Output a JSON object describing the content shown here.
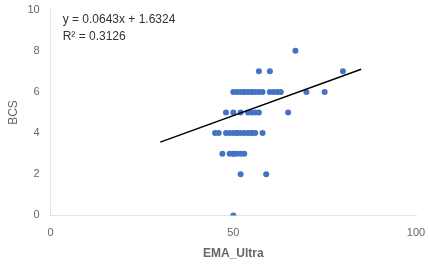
{
  "chart_data": {
    "type": "scatter",
    "x_label": "EMA_Ultra",
    "y_label": "BCS",
    "series": [
      {
        "type": "scatter",
        "color": "#4472C4",
        "x": [
          45,
          46,
          47,
          48,
          48,
          49,
          49,
          50,
          50,
          50,
          50,
          50,
          50,
          51,
          51,
          51,
          51,
          52,
          52,
          52,
          52,
          52,
          53,
          53,
          53,
          53,
          54,
          54,
          54,
          55,
          55,
          55,
          55,
          55,
          56,
          56,
          56,
          57,
          57,
          57,
          58,
          58,
          59,
          60,
          60,
          61,
          62,
          63,
          65,
          67,
          70,
          75,
          80
        ],
        "values": [
          4,
          4,
          3,
          4,
          5,
          3,
          4,
          0,
          3,
          3,
          4,
          5,
          6,
          3,
          4,
          4,
          6,
          2,
          3,
          4,
          5,
          6,
          3,
          4,
          6,
          6,
          4,
          5,
          6,
          4,
          4,
          5,
          6,
          6,
          4,
          5,
          6,
          5,
          6,
          7,
          4,
          6,
          2,
          6,
          7,
          6,
          6,
          6,
          5,
          8,
          6,
          6,
          7
        ]
      },
      {
        "type": "line",
        "color": "#000000",
        "x": [
          30,
          85
        ],
        "values": [
          3.5614,
          7.0979
        ]
      }
    ],
    "annotations": [
      "y = 0.0643x + 1.6324",
      "R² = 0.3126"
    ],
    "xlim": [
      0,
      100
    ],
    "ylim": [
      0,
      10
    ],
    "xticks": [
      0,
      50,
      100
    ],
    "yticks": [
      0,
      2,
      4,
      6,
      8,
      10
    ],
    "grid": false
  }
}
